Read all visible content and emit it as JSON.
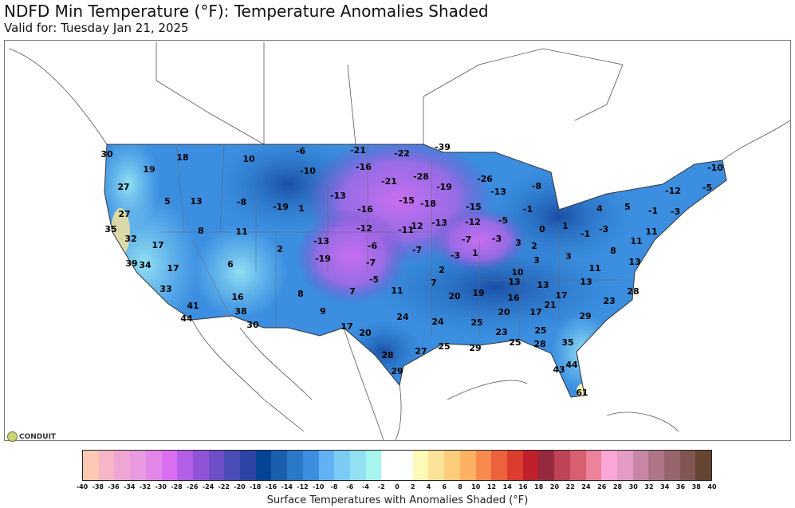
{
  "header": {
    "title": "NDFD Min Temperature (°F): Temperature Anomalies Shaded",
    "subtitle": "Valid for: Tuesday Jan 21, 2025"
  },
  "logo": "CONDUIT",
  "colorbar": {
    "label": "Surface Temperatures with Anomalies Shaded (°F)",
    "ticks": [
      "-40",
      "-38",
      "-36",
      "-34",
      "-32",
      "-30",
      "-28",
      "-26",
      "-24",
      "-22",
      "-20",
      "-18",
      "-16",
      "-14",
      "-12",
      "-10",
      "-8",
      "-6",
      "-4",
      "-2",
      "0",
      "2",
      "4",
      "6",
      "8",
      "10",
      "12",
      "14",
      "16",
      "18",
      "20",
      "22",
      "24",
      "26",
      "28",
      "30",
      "32",
      "34",
      "36",
      "38",
      "40"
    ],
    "colors": [
      "#fdc9b4",
      "#f6b6c8",
      "#f0a6d4",
      "#e89be0",
      "#e287e8",
      "#d96ef0",
      "#b35ee6",
      "#9153d8",
      "#6f4fc8",
      "#4b4db8",
      "#2d44a6",
      "#044496",
      "#1a5fae",
      "#2b78c8",
      "#3b8ee0",
      "#63b1f5",
      "#7ccbf5",
      "#92e0f2",
      "#a6f6ef",
      "#ffffff",
      "#ffffff",
      "#fdf9b6",
      "#fde39a",
      "#fdcd7b",
      "#fbb062",
      "#f88a4e",
      "#ed613d",
      "#dc3c2e",
      "#c0202c",
      "#952a3e",
      "#bf4357",
      "#d85f70",
      "#ec829c",
      "#fca7d8",
      "#e49bc4",
      "#c885a5",
      "#ae7587",
      "#99656d",
      "#815652",
      "#654431"
    ]
  },
  "station_values": [
    "30",
    "18",
    "19",
    "10",
    "-6",
    "-10",
    "-21",
    "-22",
    "-39",
    "-16",
    "-21",
    "-28",
    "-26",
    "-19",
    "-13",
    "-8",
    "27",
    "5",
    "13",
    "-8",
    "-19",
    "1",
    "-13",
    "-15",
    "-18",
    "-16",
    "-15",
    "-1",
    "4",
    "5",
    "-1",
    "-3",
    "-12",
    "-10",
    "-5",
    "27",
    "8",
    "11",
    "35",
    "32",
    "17",
    "-12",
    "-11",
    "12",
    "-13",
    "-12",
    "-5",
    "0",
    "1",
    "-1",
    "-3",
    "11",
    "11",
    "2",
    "-13",
    "-19",
    "-6",
    "-7",
    "-7",
    "-3",
    "3",
    "2",
    "3",
    "8",
    "13",
    "39",
    "34",
    "17",
    "6",
    "-7",
    "-3",
    "1",
    "3",
    "11",
    "2",
    "10",
    "-5",
    "7",
    "11",
    "7",
    "13",
    "13",
    "13",
    "33",
    "8",
    "20",
    "19",
    "16",
    "17",
    "21",
    "28",
    "23",
    "16",
    "41",
    "38",
    "9",
    "24",
    "20",
    "17",
    "29",
    "44",
    "30",
    "17",
    "20",
    "24",
    "25",
    "23",
    "25",
    "35",
    "25",
    "28",
    "28",
    "27",
    "25",
    "29",
    "44",
    "43",
    "29",
    "61"
  ]
}
